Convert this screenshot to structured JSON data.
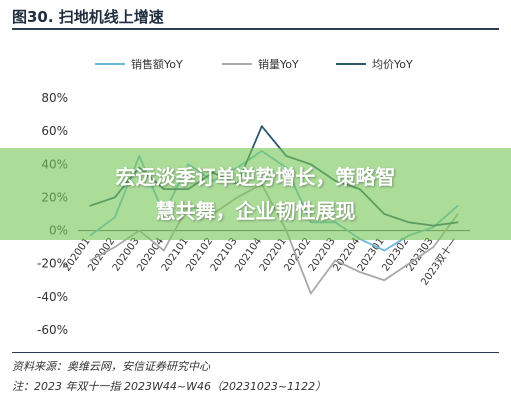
{
  "figure": {
    "title": "图30. 扫地机线上增速",
    "source": "资料来源：奥维云网，安信证券研究中心",
    "note": "注：2023 年双十一指 2023W44~W46（20231023~1122）"
  },
  "banner": {
    "line1": "宏远淡季订单逆势增长，策略智",
    "line2": "慧共舞，企业韧性展现"
  },
  "colors": {
    "sales_amount": "#6bb7d8",
    "sales_volume": "#a9a9a9",
    "avg_price": "#2e5872",
    "banner": "#78c85a"
  },
  "chart_data": {
    "type": "line",
    "categories": [
      "202001",
      "202002",
      "202003",
      "202004",
      "202101",
      "202102",
      "202103",
      "202104",
      "202201",
      "202202",
      "202203",
      "202204",
      "202301",
      "202302",
      "202303",
      "2023双十一"
    ],
    "series": [
      {
        "name": "销售额YoY",
        "values": [
          -3,
          8,
          45,
          10,
          40,
          30,
          38,
          48,
          38,
          5,
          5,
          -5,
          -12,
          -3,
          2,
          15
        ]
      },
      {
        "name": "销量YoY",
        "values": [
          -18,
          -10,
          0,
          -12,
          15,
          10,
          20,
          28,
          0,
          -38,
          -18,
          -25,
          -30,
          -20,
          -10,
          10
        ]
      },
      {
        "name": "均价YoY",
        "values": [
          15,
          20,
          38,
          25,
          25,
          35,
          28,
          63,
          45,
          40,
          30,
          25,
          10,
          5,
          3,
          5
        ]
      }
    ],
    "yticks": [
      "80%",
      "60%",
      "40%",
      "20%",
      "0%",
      "-20%",
      "-40%",
      "-60%"
    ],
    "ylim": [
      -60,
      80
    ],
    "legend_position": "top"
  }
}
